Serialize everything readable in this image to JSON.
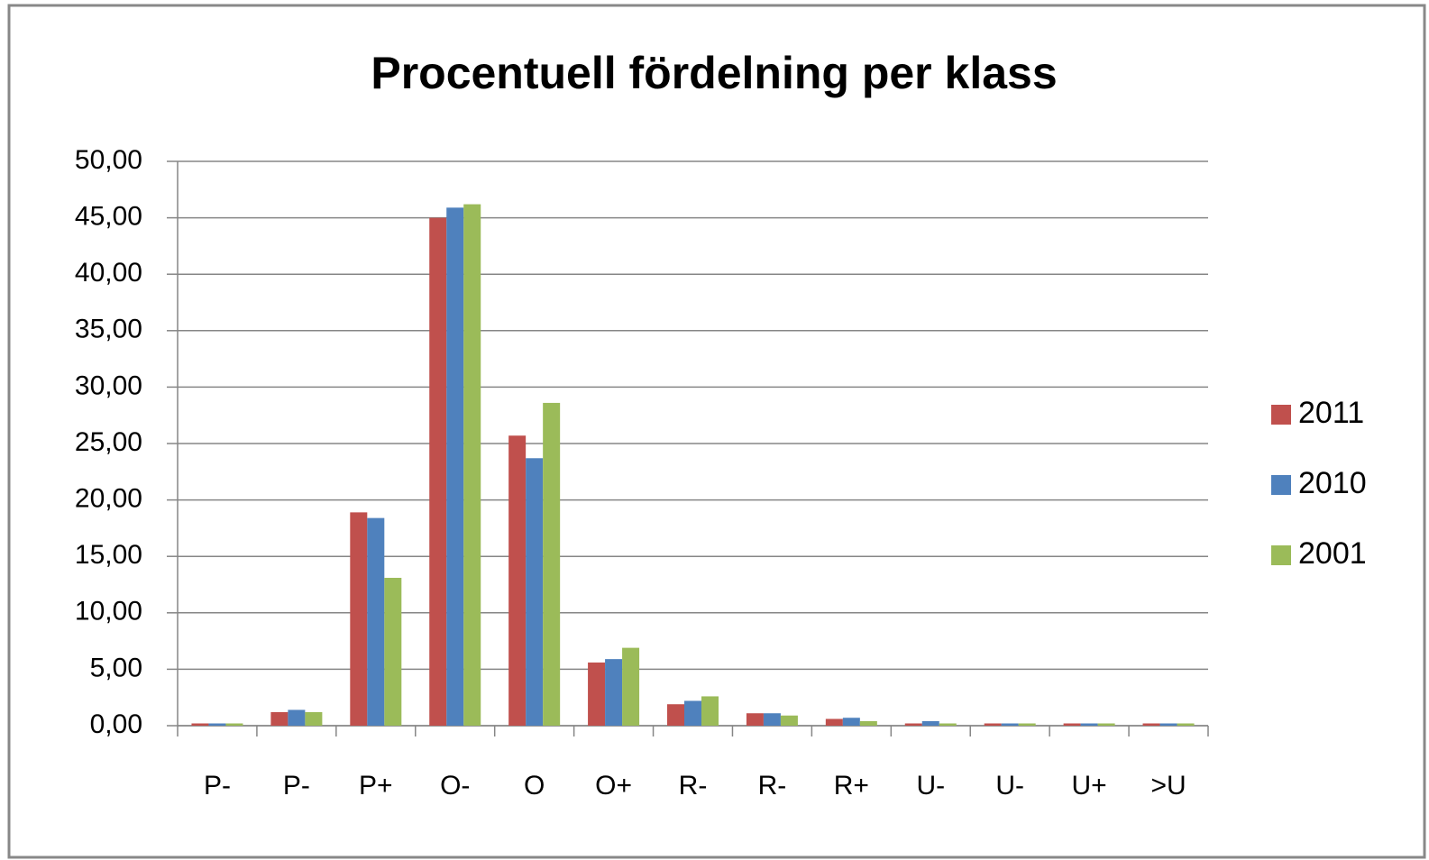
{
  "chart_data": {
    "type": "bar",
    "title": "Procentuell fördelning per klass",
    "categories": [
      "P-",
      "P-",
      "P+",
      "O-",
      "O",
      "O+",
      "R-",
      "R-",
      "R+",
      "U-",
      "U-",
      "U+",
      ">U"
    ],
    "series": [
      {
        "name": "2011",
        "color": "#c0504d",
        "values": [
          0.2,
          1.2,
          18.9,
          45.0,
          25.7,
          5.6,
          1.9,
          1.1,
          0.6,
          0.2,
          0.2,
          0.2,
          0.2
        ]
      },
      {
        "name": "2010",
        "color": "#4f81bd",
        "values": [
          0.2,
          1.4,
          18.4,
          45.9,
          23.7,
          5.9,
          2.2,
          1.1,
          0.7,
          0.4,
          0.2,
          0.2,
          0.2
        ]
      },
      {
        "name": "2001",
        "color": "#9bbb59",
        "values": [
          0.2,
          1.2,
          13.1,
          46.2,
          28.6,
          6.9,
          2.6,
          0.9,
          0.4,
          0.2,
          0.2,
          0.2,
          0.2
        ]
      }
    ],
    "ylim": [
      0,
      50
    ],
    "yticks": [
      {
        "value": 0,
        "label": "0,00"
      },
      {
        "value": 5,
        "label": "5,00"
      },
      {
        "value": 10,
        "label": "10,00"
      },
      {
        "value": 15,
        "label": "15,00"
      },
      {
        "value": 20,
        "label": "20,00"
      },
      {
        "value": 25,
        "label": "25,00"
      },
      {
        "value": 30,
        "label": "30,00"
      },
      {
        "value": 35,
        "label": "35,00"
      },
      {
        "value": 40,
        "label": "40,00"
      },
      {
        "value": 45,
        "label": "45,00"
      },
      {
        "value": 50,
        "label": "50,00"
      }
    ],
    "grid": true,
    "legend": "right"
  }
}
